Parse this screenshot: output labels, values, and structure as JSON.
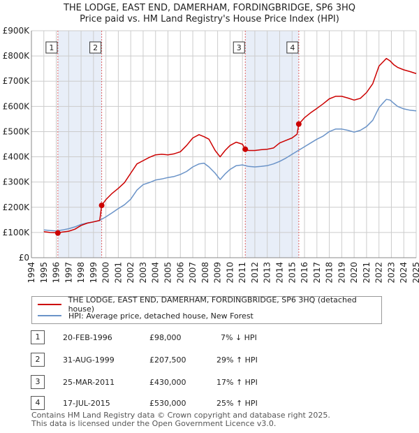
{
  "header": {
    "title_line1": "THE LODGE, EAST END, DAMERHAM, FORDINGBRIDGE, SP6 3HQ",
    "title_line2": "Price paid vs. HM Land Registry's House Price Index (HPI)"
  },
  "colors": {
    "price": "#cc0000",
    "hpi": "#6a93c8",
    "shade": "#e8eef8",
    "grid": "#cccccc",
    "marker_box": "#333333"
  },
  "chart_data": {
    "type": "line",
    "title": "Price paid vs. HM Land Registry's House Price Index (HPI)",
    "xlabel": "",
    "ylabel": "",
    "xlim": [
      1994,
      2025
    ],
    "ylim": [
      0,
      900000
    ],
    "grid": true,
    "x_ticks": [
      "1994",
      "1995",
      "1996",
      "1997",
      "1998",
      "1999",
      "2000",
      "2001",
      "2002",
      "2003",
      "2004",
      "2005",
      "2006",
      "2007",
      "2008",
      "2009",
      "2010",
      "2011",
      "2012",
      "2013",
      "2014",
      "2015",
      "2016",
      "2017",
      "2018",
      "2019",
      "2020",
      "2021",
      "2022",
      "2023",
      "2024",
      "2025"
    ],
    "y_ticks": [
      {
        "value": 0,
        "label": "£0"
      },
      {
        "value": 100000,
        "label": "£100K"
      },
      {
        "value": 200000,
        "label": "£200K"
      },
      {
        "value": 300000,
        "label": "£300K"
      },
      {
        "value": 400000,
        "label": "£400K"
      },
      {
        "value": 500000,
        "label": "£500K"
      },
      {
        "value": 600000,
        "label": "£600K"
      },
      {
        "value": 700000,
        "label": "£700K"
      },
      {
        "value": 800000,
        "label": "£800K"
      },
      {
        "value": 900000,
        "label": "£900K"
      }
    ],
    "shaded_ranges": [
      [
        1996.13,
        1999.66
      ],
      [
        2011.23,
        2015.54
      ]
    ],
    "series": [
      {
        "name": "THE LODGE, EAST END, DAMERHAM, FORDINGBRIDGE, SP6 3HQ (detached house)",
        "color": "#cc0000",
        "x": [
          1995.0,
          1995.5,
          1996.0,
          1996.13,
          1996.5,
          1997.0,
          1997.5,
          1998.0,
          1998.5,
          1999.0,
          1999.5,
          1999.66,
          2000.0,
          2000.5,
          2001.0,
          2001.5,
          2002.0,
          2002.5,
          2003.0,
          2003.5,
          2004.0,
          2004.5,
          2005.0,
          2005.5,
          2006.0,
          2006.5,
          2007.0,
          2007.5,
          2007.9,
          2008.3,
          2008.8,
          2009.2,
          2009.6,
          2010.0,
          2010.5,
          2011.0,
          2011.23,
          2011.5,
          2012.0,
          2012.5,
          2013.0,
          2013.5,
          2014.0,
          2014.5,
          2015.0,
          2015.4,
          2015.54,
          2016.0,
          2016.5,
          2017.0,
          2017.5,
          2018.0,
          2018.5,
          2019.0,
          2019.5,
          2020.0,
          2020.5,
          2021.0,
          2021.5,
          2022.0,
          2022.3,
          2022.6,
          2022.9,
          2023.2,
          2023.5,
          2024.0,
          2024.5,
          2025.0
        ],
        "values": [
          103000,
          100000,
          99000,
          98000,
          102000,
          105000,
          113000,
          128000,
          137000,
          142000,
          148000,
          207500,
          230000,
          255000,
          275000,
          298000,
          335000,
          372000,
          385000,
          398000,
          408000,
          410000,
          408000,
          412000,
          420000,
          445000,
          475000,
          488000,
          480000,
          470000,
          425000,
          400000,
          425000,
          445000,
          458000,
          450000,
          430000,
          425000,
          425000,
          428000,
          430000,
          435000,
          455000,
          465000,
          475000,
          490000,
          530000,
          555000,
          575000,
          592000,
          610000,
          630000,
          640000,
          640000,
          633000,
          625000,
          632000,
          655000,
          690000,
          760000,
          775000,
          790000,
          780000,
          765000,
          755000,
          745000,
          738000,
          730000
        ]
      },
      {
        "name": "HPI: Average price, detached house, New Forest",
        "color": "#6a93c8",
        "x": [
          1995.0,
          1995.5,
          1996.0,
          1996.5,
          1997.0,
          1997.5,
          1998.0,
          1998.5,
          1999.0,
          1999.5,
          2000.0,
          2000.5,
          2001.0,
          2001.5,
          2002.0,
          2002.5,
          2003.0,
          2003.5,
          2004.0,
          2004.5,
          2005.0,
          2005.5,
          2006.0,
          2006.5,
          2007.0,
          2007.5,
          2007.9,
          2008.3,
          2008.8,
          2009.2,
          2009.6,
          2010.0,
          2010.5,
          2011.0,
          2011.5,
          2012.0,
          2012.5,
          2013.0,
          2013.5,
          2014.0,
          2014.5,
          2015.0,
          2015.5,
          2016.0,
          2016.5,
          2017.0,
          2017.5,
          2018.0,
          2018.5,
          2019.0,
          2019.5,
          2020.0,
          2020.5,
          2021.0,
          2021.5,
          2022.0,
          2022.3,
          2022.6,
          2022.9,
          2023.2,
          2023.5,
          2024.0,
          2024.5,
          2025.0
        ],
        "values": [
          110000,
          108000,
          106000,
          110000,
          115000,
          122000,
          132000,
          138000,
          142000,
          148000,
          162000,
          178000,
          195000,
          210000,
          232000,
          268000,
          290000,
          298000,
          308000,
          312000,
          318000,
          322000,
          330000,
          342000,
          360000,
          372000,
          375000,
          360000,
          335000,
          310000,
          332000,
          350000,
          365000,
          368000,
          362000,
          360000,
          362000,
          365000,
          372000,
          382000,
          395000,
          410000,
          425000,
          440000,
          455000,
          470000,
          482000,
          500000,
          510000,
          510000,
          505000,
          498000,
          505000,
          520000,
          545000,
          595000,
          612000,
          628000,
          625000,
          612000,
          600000,
          590000,
          585000,
          582000
        ]
      }
    ],
    "annotations": [
      {
        "label": "1",
        "x": 1996.13,
        "y": 98000
      },
      {
        "label": "2",
        "x": 1999.66,
        "y": 207500
      },
      {
        "label": "3",
        "x": 2011.23,
        "y": 430000
      },
      {
        "label": "4",
        "x": 2015.54,
        "y": 530000
      }
    ]
  },
  "legend": {
    "items": [
      {
        "label": "THE LODGE, EAST END, DAMERHAM, FORDINGBRIDGE, SP6 3HQ (detached house)"
      },
      {
        "label": "HPI: Average price, detached house, New Forest"
      }
    ]
  },
  "transactions": [
    {
      "num": "1",
      "date": "20-FEB-1996",
      "price": "£98,000",
      "hpi": "7% ↓ HPI"
    },
    {
      "num": "2",
      "date": "31-AUG-1999",
      "price": "£207,500",
      "hpi": "29% ↑ HPI"
    },
    {
      "num": "3",
      "date": "25-MAR-2011",
      "price": "£430,000",
      "hpi": "17% ↑ HPI"
    },
    {
      "num": "4",
      "date": "17-JUL-2015",
      "price": "£530,000",
      "hpi": "25% ↑ HPI"
    }
  ],
  "footer": {
    "line1": "Contains HM Land Registry data © Crown copyright and database right 2025.",
    "line2": "This data is licensed under the Open Government Licence v3.0."
  }
}
